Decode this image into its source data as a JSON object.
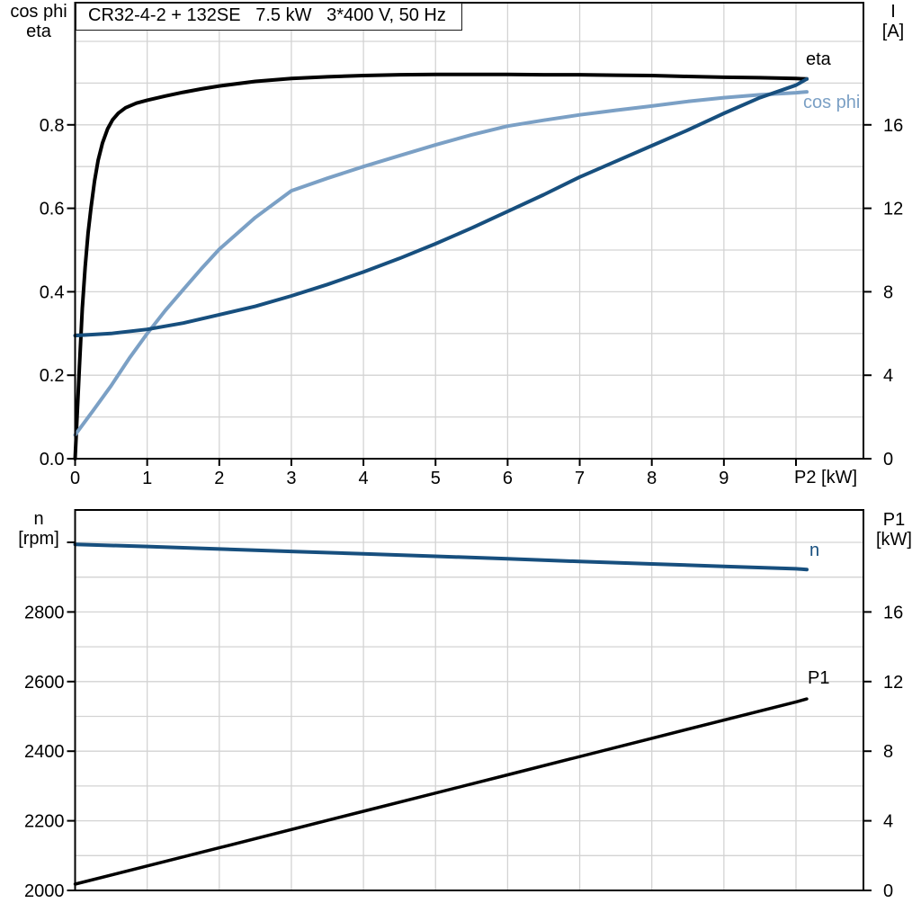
{
  "colors": {
    "black_curve": "#000000",
    "dark_blue": "#174f7e",
    "light_blue": "#7ba0c5",
    "grid": "#d3d3d3",
    "axis": "#000000"
  },
  "chart_data": [
    {
      "type": "line",
      "title": "CR32-4-2 + 132SE   7.5 kW   3*400 V, 50 Hz",
      "x_axis": {
        "label": "P2 [kW]",
        "min": 0,
        "max": 10.94,
        "grid_step": 1,
        "ticks": [
          {
            "v": 0,
            "label": "0"
          },
          {
            "v": 1,
            "label": "1"
          },
          {
            "v": 2,
            "label": "2"
          },
          {
            "v": 3,
            "label": "3"
          },
          {
            "v": 4,
            "label": "4"
          },
          {
            "v": 5,
            "label": "5"
          },
          {
            "v": 6,
            "label": "6"
          },
          {
            "v": 7,
            "label": "7"
          },
          {
            "v": 8,
            "label": "8"
          },
          {
            "v": 9,
            "label": "9"
          },
          {
            "v": 10,
            "label": ""
          }
        ]
      },
      "left_axis": {
        "header1": "cos phi",
        "header2": "eta",
        "min": 0,
        "max": 1.09,
        "grid_step": 0.1,
        "grid_to": 1.0,
        "ticks": [
          {
            "v": 0,
            "label": "0.0"
          },
          {
            "v": 0.2,
            "label": "0.2"
          },
          {
            "v": 0.4,
            "label": "0.4"
          },
          {
            "v": 0.6,
            "label": "0.6"
          },
          {
            "v": 0.8,
            "label": "0.8"
          }
        ]
      },
      "right_axis": {
        "header1": "I",
        "header2": "[A]",
        "min": 0,
        "max": 21.8,
        "ticks": [
          {
            "v": 0,
            "label": "0"
          },
          {
            "v": 4,
            "label": "4"
          },
          {
            "v": 8,
            "label": "8"
          },
          {
            "v": 12,
            "label": "12"
          },
          {
            "v": 16,
            "label": "16"
          }
        ]
      },
      "series": [
        {
          "name": "eta",
          "label": "eta",
          "axis": "left",
          "color": "#000000",
          "points": [
            [
              0,
              0
            ],
            [
              0.03,
              0.11
            ],
            [
              0.06,
              0.22
            ],
            [
              0.1,
              0.36
            ],
            [
              0.14,
              0.46
            ],
            [
              0.18,
              0.54
            ],
            [
              0.22,
              0.6
            ],
            [
              0.27,
              0.665
            ],
            [
              0.32,
              0.715
            ],
            [
              0.38,
              0.757
            ],
            [
              0.45,
              0.79
            ],
            [
              0.52,
              0.812
            ],
            [
              0.6,
              0.828
            ],
            [
              0.7,
              0.841
            ],
            [
              0.85,
              0.852
            ],
            [
              1,
              0.859
            ],
            [
              1.25,
              0.869
            ],
            [
              1.5,
              0.878
            ],
            [
              1.75,
              0.886
            ],
            [
              2,
              0.893
            ],
            [
              2.5,
              0.904
            ],
            [
              3,
              0.911
            ],
            [
              3.5,
              0.915
            ],
            [
              4,
              0.918
            ],
            [
              4.5,
              0.92
            ],
            [
              5,
              0.921
            ],
            [
              5.5,
              0.921
            ],
            [
              6,
              0.921
            ],
            [
              6.5,
              0.92
            ],
            [
              7,
              0.92
            ],
            [
              7.5,
              0.919
            ],
            [
              8,
              0.918
            ],
            [
              8.5,
              0.916
            ],
            [
              9,
              0.914
            ],
            [
              9.5,
              0.913
            ],
            [
              10,
              0.911
            ],
            [
              10.15,
              0.91
            ]
          ]
        },
        {
          "name": "cos phi",
          "label": "cos phi",
          "axis": "left",
          "color": "#7ba0c5",
          "points": [
            [
              0,
              0.057
            ],
            [
              0.25,
              0.115
            ],
            [
              0.5,
              0.175
            ],
            [
              0.75,
              0.24
            ],
            [
              1,
              0.3
            ],
            [
              1.25,
              0.355
            ],
            [
              1.5,
              0.405
            ],
            [
              1.75,
              0.455
            ],
            [
              2,
              0.502
            ],
            [
              2.5,
              0.578
            ],
            [
              3,
              0.642
            ],
            [
              3.5,
              0.672
            ],
            [
              4,
              0.7
            ],
            [
              4.5,
              0.726
            ],
            [
              5,
              0.752
            ],
            [
              5.5,
              0.776
            ],
            [
              6,
              0.797
            ],
            [
              6.5,
              0.811
            ],
            [
              7,
              0.824
            ],
            [
              7.5,
              0.835
            ],
            [
              8,
              0.845
            ],
            [
              8.5,
              0.856
            ],
            [
              9,
              0.865
            ],
            [
              9.5,
              0.872
            ],
            [
              10,
              0.877
            ],
            [
              10.15,
              0.879
            ]
          ]
        },
        {
          "name": "I",
          "label": "",
          "axis": "right",
          "color": "#174f7e",
          "points": [
            [
              0,
              5.9
            ],
            [
              0.5,
              6.0
            ],
            [
              1,
              6.2
            ],
            [
              1.5,
              6.5
            ],
            [
              2,
              6.9
            ],
            [
              2.5,
              7.3
            ],
            [
              3,
              7.8
            ],
            [
              3.5,
              8.35
            ],
            [
              4,
              8.95
            ],
            [
              4.5,
              9.6
            ],
            [
              5,
              10.3
            ],
            [
              5.5,
              11.05
            ],
            [
              6,
              11.85
            ],
            [
              6.5,
              12.65
            ],
            [
              7,
              13.5
            ],
            [
              7.5,
              14.25
            ],
            [
              8,
              15.0
            ],
            [
              8.5,
              15.75
            ],
            [
              9,
              16.55
            ],
            [
              9.5,
              17.3
            ],
            [
              10,
              17.9
            ],
            [
              10.15,
              18.2
            ]
          ]
        }
      ]
    },
    {
      "type": "line",
      "title": "",
      "x_axis": {
        "label": "",
        "min": 0,
        "max": 10.94,
        "grid_step": 1,
        "ticks": []
      },
      "left_axis": {
        "header1": "n",
        "header2": "[rpm]",
        "min": 2000,
        "max": 3094,
        "grid_step": 100,
        "grid_to": 3000,
        "ticks": [
          {
            "v": 2000,
            "label": "2000"
          },
          {
            "v": 2200,
            "label": "2200"
          },
          {
            "v": 2400,
            "label": "2400"
          },
          {
            "v": 2600,
            "label": "2600"
          },
          {
            "v": 2800,
            "label": "2800"
          },
          {
            "v": 3000,
            "label": ""
          }
        ]
      },
      "right_axis": {
        "header1": "P1",
        "header2": "[kW]",
        "min": 0,
        "max": 21.8,
        "ticks": [
          {
            "v": 0,
            "label": "0"
          },
          {
            "v": 4,
            "label": "4"
          },
          {
            "v": 8,
            "label": "8"
          },
          {
            "v": 12,
            "label": "12"
          },
          {
            "v": 16,
            "label": "16"
          }
        ]
      },
      "series": [
        {
          "name": "n",
          "label": "n",
          "axis": "left",
          "color": "#174f7e",
          "points": [
            [
              0,
              2994
            ],
            [
              1,
              2988
            ],
            [
              2,
              2981
            ],
            [
              3,
              2974
            ],
            [
              4,
              2967
            ],
            [
              5,
              2960
            ],
            [
              6,
              2953
            ],
            [
              7,
              2945
            ],
            [
              8,
              2938
            ],
            [
              9,
              2931
            ],
            [
              10,
              2924
            ],
            [
              10.15,
              2922
            ]
          ]
        },
        {
          "name": "P1",
          "label": "P1",
          "axis": "right",
          "color": "#000000",
          "points": [
            [
              0,
              0.36
            ],
            [
              2,
              2.45
            ],
            [
              4,
              4.55
            ],
            [
              6,
              6.64
            ],
            [
              8,
              8.74
            ],
            [
              10,
              10.83
            ],
            [
              10.15,
              11.0
            ]
          ]
        }
      ]
    }
  ]
}
